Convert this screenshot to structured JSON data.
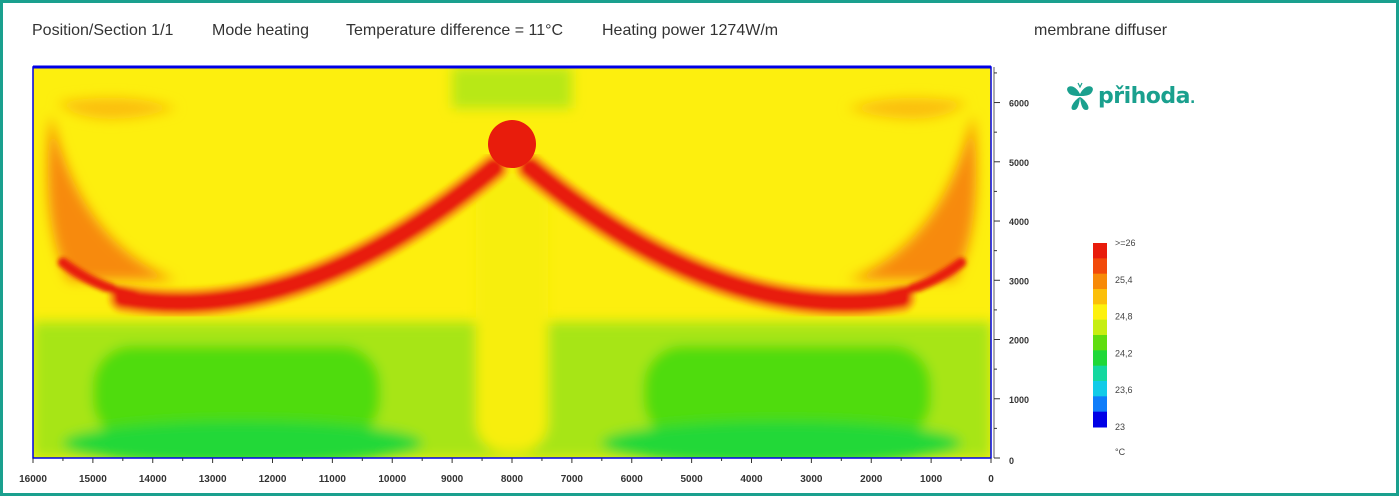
{
  "header": {
    "position": "Position/Section  1/1",
    "mode": "Mode heating",
    "temp_diff": "Temperature difference = 11°C",
    "power": "Heating power 1274W/m",
    "device": "membrane diffuser"
  },
  "logo": {
    "text": "přihoda",
    "dot": "."
  },
  "colors": {
    "frame": "#1aa08e",
    "logo": "#1aa08e"
  },
  "chart_data": {
    "type": "heatmap",
    "title": "",
    "xlabel": "",
    "ylabel": "",
    "x_ticks": [
      16000,
      15000,
      14000,
      13000,
      12000,
      11000,
      10000,
      9000,
      8000,
      7000,
      6000,
      5000,
      4000,
      3000,
      2000,
      1000,
      0
    ],
    "y_ticks": [
      0,
      1000,
      2000,
      3000,
      4000,
      5000,
      6000
    ],
    "xlim": [
      16000,
      0
    ],
    "ylim": [
      0,
      6600
    ],
    "diffuser_center": {
      "x": 8000,
      "y": 5300
    },
    "colorbar": {
      "labels": [
        ">=26",
        "25,4",
        "24,8",
        "24,2",
        "23,6",
        "23"
      ],
      "unit": "°C",
      "colors": [
        "#e81c0c",
        "#f24a0a",
        "#f78a08",
        "#fbbf0a",
        "#fdf10e",
        "#c6ee12",
        "#5fdd10",
        "#20d838",
        "#14d89f",
        "#12cbe8",
        "#0f7dfa",
        "#0000e6"
      ]
    },
    "zones": {
      "background_temp": "yellow",
      "lower_zone": "green",
      "jet": "red"
    }
  }
}
